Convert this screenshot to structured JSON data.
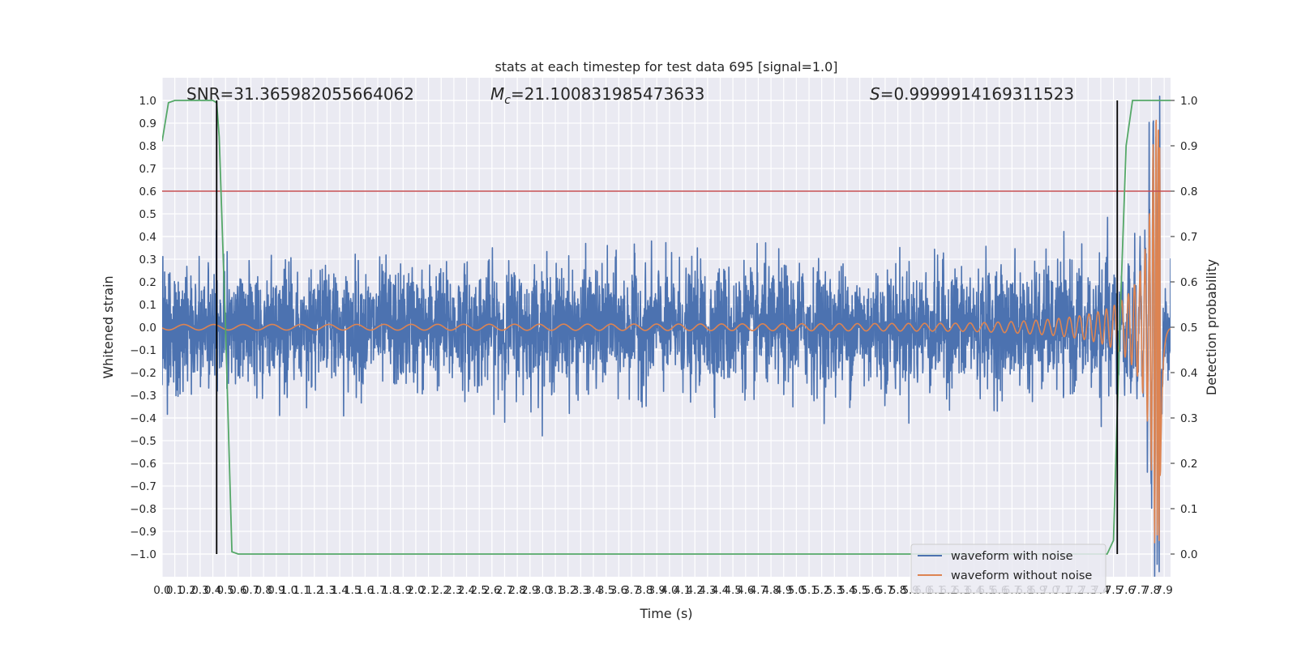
{
  "chart_data": {
    "type": "line",
    "title": "stats at each timestep for test data 695 [signal=1.0]",
    "xlabel": "Time (s)",
    "ylabel": "Whitened strain",
    "ylabel_right": "Detection probability",
    "xlim": [
      0.0,
      7.95
    ],
    "ylim": [
      -1.1,
      1.1
    ],
    "ylim_right": [
      -0.05,
      1.05
    ],
    "x_ticks": [
      "0.0",
      "0.1",
      "0.2",
      "0.3",
      "0.4",
      "0.5",
      "0.6",
      "0.7",
      "0.8",
      "0.9",
      "1.0",
      "1.1",
      "1.2",
      "1.3",
      "1.4",
      "1.5",
      "1.6",
      "1.7",
      "1.8",
      "1.9",
      "2.0",
      "2.1",
      "2.2",
      "2.3",
      "2.4",
      "2.5",
      "2.6",
      "2.7",
      "2.8",
      "2.9",
      "3.0",
      "3.1",
      "3.2",
      "3.3",
      "3.4",
      "3.5",
      "3.6",
      "3.7",
      "3.8",
      "3.9",
      "4.0",
      "4.1",
      "4.2",
      "4.3",
      "4.4",
      "4.5",
      "4.6",
      "4.7",
      "4.8",
      "4.9",
      "5.0",
      "5.1",
      "5.2",
      "5.3",
      "5.4",
      "5.5",
      "5.6",
      "5.7",
      "5.8",
      "5.9",
      "6.0",
      "6.1",
      "6.2",
      "6.3",
      "6.4",
      "6.5",
      "6.6",
      "6.7",
      "6.8",
      "6.9",
      "7.0",
      "7.1",
      "7.2",
      "7.3",
      "7.4",
      "7.5",
      "7.6",
      "7.7",
      "7.8",
      "7.9"
    ],
    "y_ticks": [
      "−1.0",
      "−0.9",
      "−0.8",
      "−0.7",
      "−0.6",
      "−0.5",
      "−0.4",
      "−0.3",
      "−0.2",
      "−0.1",
      "0.0",
      "0.1",
      "0.2",
      "0.3",
      "0.4",
      "0.5",
      "0.6",
      "0.7",
      "0.8",
      "0.9",
      "1.0"
    ],
    "y_ticks_right": [
      "0.0",
      "0.1",
      "0.2",
      "0.3",
      "0.4",
      "0.5",
      "0.6",
      "0.7",
      "0.8",
      "0.9",
      "1.0"
    ],
    "annotations": {
      "snr": "SNR=31.365982055664062",
      "mc_symbol": "M",
      "mc_sub": "c",
      "mc_value": "=21.100831985473633",
      "s_symbol": "S",
      "s_value": "=0.9999914169311523"
    },
    "series": [
      {
        "name": "waveform with noise",
        "color": "#4c72b0",
        "kind": "noise",
        "amplitude_std": 0.13
      },
      {
        "name": "waveform without noise",
        "color": "#dd8452",
        "kind": "chirp",
        "t_merger": 7.87,
        "start_amplitude": 0.012,
        "peak_amplitude": 0.95
      },
      {
        "name": "",
        "color": "#55a868",
        "axis": "right",
        "x": [
          0.0,
          0.05,
          0.1,
          0.15,
          0.2,
          0.3,
          0.4,
          0.43,
          0.45,
          0.5,
          0.55,
          0.6,
          7.0,
          7.45,
          7.5,
          7.55,
          7.6,
          7.65,
          7.7,
          7.95
        ],
        "y": [
          0.91,
          0.995,
          1.0,
          1.0,
          1.0,
          1.0,
          1.0,
          0.995,
          0.92,
          0.5,
          0.005,
          0.0,
          0.0,
          0.0,
          0.03,
          0.5,
          0.9,
          1.0,
          1.0,
          1.0
        ]
      }
    ],
    "threshold": {
      "value": 0.8,
      "color": "#c44e52"
    },
    "vlines": [
      {
        "x": 0.43,
        "y_right": [
          0.0,
          1.0
        ]
      },
      {
        "x": 7.53,
        "y_right": [
          0.0,
          1.0
        ]
      }
    ],
    "legend": {
      "placement": "lower-right"
    },
    "grid": true,
    "colors": {
      "axes_bg": "#eaeaf2",
      "grid": "#ffffff",
      "vline": "#000000"
    }
  }
}
